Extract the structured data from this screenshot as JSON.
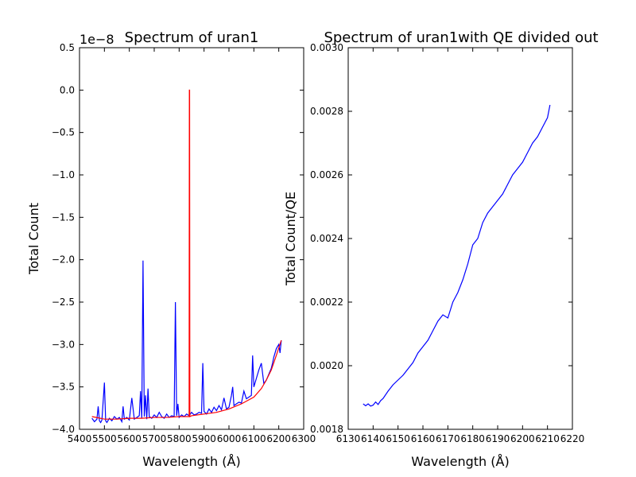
{
  "chart_data": [
    {
      "type": "line",
      "title": "Spectrum of uran1",
      "xlabel": "Wavelength (Å)",
      "ylabel": "Total Count",
      "offset_label": "1e−8",
      "xlim": [
        5400,
        6300
      ],
      "ylim": [
        -4.0,
        0.5
      ],
      "x_ticks": [
        5400,
        5500,
        5600,
        5700,
        5800,
        5900,
        6000,
        6100,
        6200,
        6300
      ],
      "x_tick_labels": [
        "5400",
        "5500",
        "5600",
        "5700",
        "5800",
        "5900",
        "6000",
        "6100",
        "6200",
        "6300"
      ],
      "y_ticks": [
        -4.0,
        -3.5,
        -3.0,
        -2.5,
        -2.0,
        -1.5,
        -1.0,
        -0.5,
        0.0,
        0.5
      ],
      "y_tick_labels": [
        "−4.0",
        "−3.5",
        "−3.0",
        "−2.5",
        "−2.0",
        "−1.5",
        "−1.0",
        "−0.5",
        "0.0",
        "0.5"
      ],
      "grid": false,
      "series": [
        {
          "color": "#0000ff",
          "x": [
            5450,
            5460,
            5470,
            5475,
            5480,
            5485,
            5490,
            5500,
            5505,
            5510,
            5520,
            5530,
            5540,
            5550,
            5560,
            5570,
            5575,
            5580,
            5590,
            5600,
            5610,
            5620,
            5630,
            5640,
            5645,
            5650,
            5655,
            5660,
            5665,
            5670,
            5675,
            5680,
            5690,
            5700,
            5710,
            5720,
            5730,
            5740,
            5750,
            5760,
            5770,
            5780,
            5785,
            5790,
            5795,
            5800,
            5810,
            5820,
            5830,
            5840,
            5850,
            5860,
            5870,
            5880,
            5890,
            5895,
            5900,
            5910,
            5920,
            5930,
            5940,
            5950,
            5960,
            5970,
            5980,
            5990,
            6000,
            6010,
            6015,
            6020,
            6030,
            6040,
            6050,
            6060,
            6070,
            6080,
            6090,
            6095,
            6100,
            6110,
            6120,
            6130,
            6140,
            6150,
            6160,
            6170,
            6175,
            6180,
            6190,
            6200,
            6205,
            6210
          ],
          "y": [
            -3.87,
            -3.91,
            -3.88,
            -3.73,
            -3.9,
            -3.92,
            -3.89,
            -3.45,
            -3.9,
            -3.92,
            -3.87,
            -3.9,
            -3.85,
            -3.88,
            -3.86,
            -3.91,
            -3.73,
            -3.88,
            -3.86,
            -3.89,
            -3.63,
            -3.88,
            -3.86,
            -3.84,
            -3.55,
            -3.87,
            -2.01,
            -3.85,
            -3.6,
            -3.88,
            -3.52,
            -3.85,
            -3.87,
            -3.83,
            -3.86,
            -3.8,
            -3.85,
            -3.87,
            -3.82,
            -3.86,
            -3.84,
            -3.85,
            -2.5,
            -3.84,
            -3.7,
            -3.86,
            -3.83,
            -3.85,
            -3.82,
            -3.84,
            -3.8,
            -3.83,
            -3.82,
            -3.8,
            -3.81,
            -3.22,
            -3.79,
            -3.82,
            -3.76,
            -3.8,
            -3.74,
            -3.78,
            -3.72,
            -3.77,
            -3.63,
            -3.76,
            -3.74,
            -3.6,
            -3.5,
            -3.72,
            -3.7,
            -3.68,
            -3.69,
            -3.55,
            -3.64,
            -3.62,
            -3.6,
            -3.13,
            -3.5,
            -3.4,
            -3.3,
            -3.22,
            -3.46,
            -3.42,
            -3.35,
            -3.28,
            -3.22,
            -3.15,
            -3.05,
            -3.0,
            -3.1,
            -2.95
          ]
        },
        {
          "color": "#ff0000",
          "x": [
            5450,
            5500,
            5550,
            5600,
            5650,
            5700,
            5750,
            5800,
            5840,
            5841,
            5842,
            5843,
            5850,
            5900,
            5950,
            6000,
            6050,
            6100,
            6130,
            6150,
            6170,
            6190,
            6210
          ],
          "y": [
            -3.85,
            -3.88,
            -3.88,
            -3.87,
            -3.87,
            -3.86,
            -3.86,
            -3.85,
            -3.85,
            0.0,
            0.0,
            -3.85,
            -3.84,
            -3.82,
            -3.8,
            -3.76,
            -3.7,
            -3.62,
            -3.52,
            -3.42,
            -3.3,
            -3.13,
            -2.95
          ]
        }
      ]
    },
    {
      "type": "line",
      "title": "Spectrum of uran1with QE divided out",
      "xlabel": "Wavelength (Å)",
      "ylabel": "Total Count/QE",
      "xlim": [
        6130,
        6220
      ],
      "ylim": [
        0.0018,
        0.003
      ],
      "x_ticks": [
        6130,
        6140,
        6150,
        6160,
        6170,
        6180,
        6190,
        6200,
        6210,
        6220
      ],
      "x_tick_labels": [
        "6130",
        "6140",
        "6150",
        "6160",
        "6170",
        "6180",
        "6190",
        "6200",
        "6210",
        "6220"
      ],
      "y_ticks": [
        0.0018,
        0.002,
        0.0022,
        0.0024,
        0.0026,
        0.0028,
        0.003
      ],
      "y_tick_labels": [
        "0.0018",
        "0.0020",
        "0.0022",
        "0.0024",
        "0.0026",
        "0.0028",
        "0.0030"
      ],
      "grid": false,
      "series": [
        {
          "color": "#0000ff",
          "x": [
            6136,
            6137,
            6138,
            6139,
            6140,
            6141,
            6142,
            6143,
            6144,
            6146,
            6148,
            6150,
            6152,
            6154,
            6156,
            6158,
            6160,
            6162,
            6164,
            6166,
            6168,
            6170,
            6172,
            6174,
            6176,
            6178,
            6180,
            6182,
            6184,
            6186,
            6188,
            6190,
            6192,
            6194,
            6196,
            6198,
            6200,
            6202,
            6204,
            6206,
            6208,
            6210,
            6211
          ],
          "y": [
            0.00188,
            0.001874,
            0.00188,
            0.001873,
            0.001876,
            0.001886,
            0.001878,
            0.00189,
            0.001897,
            0.00192,
            0.00194,
            0.001955,
            0.00197,
            0.00199,
            0.00201,
            0.00204,
            0.00206,
            0.00208,
            0.00211,
            0.00214,
            0.00216,
            0.00215,
            0.0022,
            0.00223,
            0.00227,
            0.00232,
            0.00238,
            0.0024,
            0.00245,
            0.00248,
            0.0025,
            0.00252,
            0.00254,
            0.00257,
            0.0026,
            0.00262,
            0.00264,
            0.00267,
            0.0027,
            0.00272,
            0.00275,
            0.00278,
            0.00282
          ]
        }
      ]
    }
  ]
}
